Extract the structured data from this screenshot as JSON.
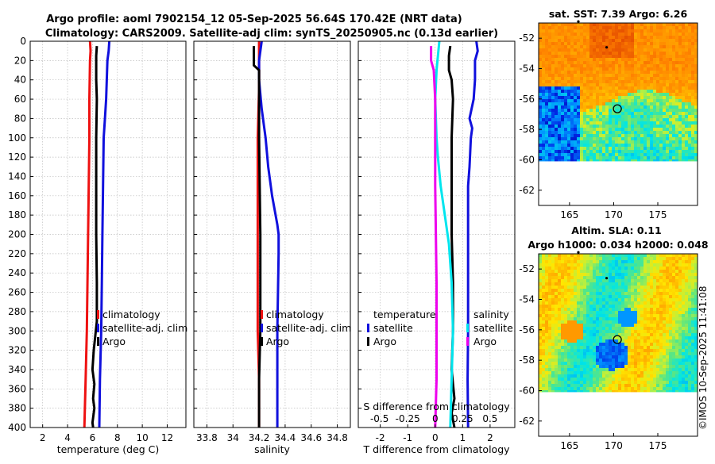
{
  "title": {
    "line1": "Argo profile: aoml 7902154_12 05-Sep-2025 56.64S 170.42E (NRT data)",
    "line2": "Climatology: CARS2009. Satellite-adj clim: synTS_20250905.nc (0.13d earlier)"
  },
  "watermark": "©IMOS 10-Sep-2025 11:41:08",
  "colors": {
    "climatology": "#ee1111",
    "satellite": "#1010dd",
    "argo": "#000000",
    "cyan": "#00e5ee",
    "magenta": "#ee00ee",
    "grid": "#bdbdbd"
  },
  "depth_ticks": [
    0,
    20,
    40,
    60,
    80,
    100,
    120,
    140,
    160,
    180,
    200,
    220,
    240,
    260,
    280,
    300,
    320,
    340,
    360,
    380,
    400
  ],
  "chart_data": [
    {
      "type": "line",
      "id": "temperature",
      "xlabel": "temperature (deg C)",
      "xlim": [
        1,
        13.5
      ],
      "ylim": [
        0,
        400
      ],
      "x_ticks": [
        2,
        4,
        6,
        8,
        10,
        12
      ],
      "x_tick_labels": [
        "2",
        "4",
        "6",
        "8",
        "10",
        "12"
      ],
      "legend": [
        "climatology",
        "satellite-adj. clim",
        "Argo"
      ],
      "series": [
        {
          "name": "climatology",
          "color": "climatology",
          "points": [
            [
              5.8,
              0
            ],
            [
              5.85,
              10
            ],
            [
              5.8,
              20
            ],
            [
              5.75,
              60
            ],
            [
              5.75,
              100
            ],
            [
              5.7,
              150
            ],
            [
              5.65,
              200
            ],
            [
              5.6,
              250
            ],
            [
              5.55,
              300
            ],
            [
              5.45,
              350
            ],
            [
              5.35,
              400
            ]
          ]
        },
        {
          "name": "satellite-adj. clim",
          "color": "satellite",
          "points": [
            [
              7.35,
              0
            ],
            [
              7.3,
              10
            ],
            [
              7.2,
              20
            ],
            [
              7.15,
              40
            ],
            [
              7.1,
              60
            ],
            [
              7.0,
              80
            ],
            [
              6.9,
              100
            ],
            [
              6.85,
              150
            ],
            [
              6.8,
              200
            ],
            [
              6.75,
              250
            ],
            [
              6.7,
              300
            ],
            [
              6.6,
              350
            ],
            [
              6.55,
              400
            ]
          ]
        },
        {
          "name": "Argo",
          "color": "argo",
          "points": [
            [
              6.35,
              5
            ],
            [
              6.3,
              15
            ],
            [
              6.3,
              40
            ],
            [
              6.35,
              60
            ],
            [
              6.3,
              100
            ],
            [
              6.3,
              150
            ],
            [
              6.3,
              200
            ],
            [
              6.35,
              250
            ],
            [
              6.35,
              290
            ],
            [
              6.1,
              320
            ],
            [
              6.0,
              340
            ],
            [
              6.15,
              355
            ],
            [
              6.05,
              370
            ],
            [
              6.15,
              380
            ],
            [
              6.0,
              395
            ],
            [
              6.05,
              400
            ]
          ]
        }
      ]
    },
    {
      "type": "line",
      "id": "salinity",
      "xlabel": "salinity",
      "xlim": [
        33.7,
        34.9
      ],
      "ylim": [
        0,
        400
      ],
      "x_ticks": [
        33.8,
        34.0,
        34.2,
        34.4,
        34.6,
        34.8
      ],
      "x_tick_labels": [
        "33.8",
        "34",
        "34.2",
        "34.4",
        "34.6",
        "34.8"
      ],
      "legend": [
        "climatology",
        "satellite-adj. clim",
        "Argo"
      ],
      "series": [
        {
          "name": "climatology",
          "color": "climatology",
          "points": [
            [
              34.2,
              0
            ],
            [
              34.2,
              50
            ],
            [
              34.19,
              100
            ],
            [
              34.19,
              150
            ],
            [
              34.19,
              200
            ],
            [
              34.19,
              250
            ],
            [
              34.19,
              300
            ],
            [
              34.2,
              350
            ],
            [
              34.2,
              400
            ]
          ]
        },
        {
          "name": "satellite-adj. clim",
          "color": "satellite",
          "points": [
            [
              34.22,
              0
            ],
            [
              34.2,
              20
            ],
            [
              34.2,
              40
            ],
            [
              34.22,
              70
            ],
            [
              34.25,
              100
            ],
            [
              34.27,
              130
            ],
            [
              34.3,
              160
            ],
            [
              34.34,
              190
            ],
            [
              34.35,
              200
            ],
            [
              34.35,
              220
            ],
            [
              34.34,
              300
            ],
            [
              34.34,
              350
            ],
            [
              34.34,
              400
            ]
          ]
        },
        {
          "name": "Argo",
          "color": "argo",
          "points": [
            [
              34.16,
              5
            ],
            [
              34.16,
              25
            ],
            [
              34.2,
              30
            ],
            [
              34.2,
              60
            ],
            [
              34.2,
              100
            ],
            [
              34.21,
              200
            ],
            [
              34.21,
              300
            ],
            [
              34.2,
              350
            ],
            [
              34.2,
              400
            ]
          ]
        }
      ]
    },
    {
      "type": "line",
      "id": "difference",
      "xlabel": "T difference from climatology",
      "xlabel_top": "S difference from climatology",
      "xlim": [
        -2.8,
        2.9
      ],
      "ylim": [
        0,
        400
      ],
      "x_ticks": [
        -2,
        -1,
        0,
        1,
        2
      ],
      "x_tick_labels": [
        "-2",
        "-1",
        "0",
        "1",
        "2"
      ],
      "s_ticks": [
        -2,
        -1,
        0,
        1,
        2
      ],
      "s_tick_labels": [
        "-0.5",
        "-0.25",
        "0",
        "0.25",
        "0.5"
      ],
      "legend_left": [
        "temperature",
        "satellite",
        "Argo"
      ],
      "legend_right": [
        "salinity",
        "satellite",
        "Argo"
      ],
      "series": [
        {
          "name": "temperature satellite",
          "color": "satellite",
          "points": [
            [
              1.5,
              0
            ],
            [
              1.55,
              10
            ],
            [
              1.45,
              20
            ],
            [
              1.45,
              40
            ],
            [
              1.4,
              60
            ],
            [
              1.25,
              80
            ],
            [
              1.35,
              90
            ],
            [
              1.3,
              100
            ],
            [
              1.25,
              130
            ],
            [
              1.2,
              150
            ],
            [
              1.2,
              200
            ],
            [
              1.2,
              250
            ],
            [
              1.2,
              300
            ],
            [
              1.18,
              350
            ],
            [
              1.2,
              400
            ]
          ]
        },
        {
          "name": "temperature Argo",
          "color": "argo",
          "points": [
            [
              0.55,
              5
            ],
            [
              0.5,
              15
            ],
            [
              0.5,
              30
            ],
            [
              0.6,
              40
            ],
            [
              0.65,
              60
            ],
            [
              0.6,
              100
            ],
            [
              0.6,
              200
            ],
            [
              0.65,
              250
            ],
            [
              0.65,
              300
            ],
            [
              0.6,
              340
            ],
            [
              0.65,
              355
            ],
            [
              0.7,
              370
            ],
            [
              0.6,
              385
            ],
            [
              0.7,
              400
            ]
          ]
        },
        {
          "name": "salinity satellite",
          "color": "cyan",
          "points": [
            [
              0.15,
              0
            ],
            [
              0.05,
              30
            ],
            [
              0.0,
              60
            ],
            [
              0.05,
              100
            ],
            [
              0.1,
              120
            ],
            [
              0.2,
              150
            ],
            [
              0.35,
              180
            ],
            [
              0.5,
              210
            ],
            [
              0.6,
              250
            ],
            [
              0.65,
              300
            ],
            [
              0.6,
              350
            ],
            [
              0.55,
              400
            ]
          ]
        },
        {
          "name": "salinity Argo",
          "color": "magenta",
          "points": [
            [
              -0.15,
              5
            ],
            [
              -0.15,
              20
            ],
            [
              -0.05,
              30
            ],
            [
              0.0,
              60
            ],
            [
              0.0,
              150
            ],
            [
              0.05,
              250
            ],
            [
              0.05,
              300
            ],
            [
              0.05,
              350
            ],
            [
              0.0,
              400
            ]
          ]
        }
      ]
    },
    {
      "type": "heatmap",
      "id": "sst_map",
      "title": "sat. SST: 7.39 Argo: 6.26",
      "xlim": [
        161.5,
        179.5
      ],
      "ylim": [
        -63,
        -51
      ],
      "x_ticks": [
        165,
        170,
        175
      ],
      "x_tick_labels": [
        "165",
        "170",
        "175"
      ],
      "y_ticks": [
        -52,
        -54,
        -56,
        -58,
        -60,
        -62
      ],
      "y_tick_labels": [
        "-52",
        "-54",
        "-56",
        "-58",
        "-60",
        "-62"
      ],
      "data_lat_min": -60.1,
      "float_position": [
        170.42,
        -56.64
      ],
      "track_points": [
        [
          166.0,
          -50.9
        ],
        [
          169.2,
          -52.6
        ]
      ]
    },
    {
      "type": "heatmap",
      "id": "sla_map",
      "title_line1": "Altim. SLA: 0.11",
      "title_line2": "Argo h1000: 0.034 h2000: 0.048",
      "xlim": [
        161.5,
        179.5
      ],
      "ylim": [
        -63,
        -51
      ],
      "x_ticks": [
        165,
        170,
        175
      ],
      "x_tick_labels": [
        "165",
        "170",
        "175"
      ],
      "y_ticks": [
        -52,
        -54,
        -56,
        -58,
        -60,
        -62
      ],
      "y_tick_labels": [
        "-52",
        "-54",
        "-56",
        "-58",
        "-60",
        "-62"
      ],
      "data_lat_min": -60.1,
      "float_position": [
        170.42,
        -56.64
      ],
      "track_points": [
        [
          166.0,
          -50.9
        ],
        [
          169.2,
          -52.6
        ]
      ]
    }
  ]
}
